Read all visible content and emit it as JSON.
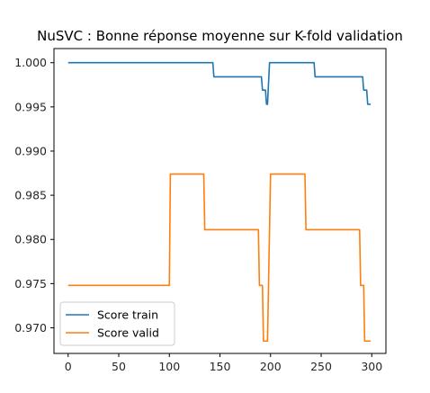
{
  "chart_data": {
    "type": "line",
    "title": "NuSVC : Bonne réponse moyenne sur K-fold validation",
    "xlabel": "",
    "ylabel": "",
    "xlim": [
      -14,
      314
    ],
    "ylim": [
      0.9671,
      1.0016
    ],
    "xticks": [
      0,
      50,
      100,
      150,
      200,
      250,
      300
    ],
    "xtick_labels": [
      "0",
      "50",
      "100",
      "150",
      "200",
      "250",
      "300"
    ],
    "yticks": [
      0.97,
      0.975,
      0.98,
      0.985,
      0.99,
      0.995,
      1.0
    ],
    "ytick_labels": [
      "0.970",
      "0.975",
      "0.980",
      "0.985",
      "0.990",
      "0.995",
      "1.000"
    ],
    "grid": false,
    "legend_position": "lower-left",
    "series": [
      {
        "name": "Score train",
        "color": "#1f77b4",
        "points": [
          [
            0,
            1.0
          ],
          [
            143,
            1.0
          ],
          [
            144,
            0.9984
          ],
          [
            191,
            0.9984
          ],
          [
            192,
            0.9969
          ],
          [
            195,
            0.9969
          ],
          [
            196,
            0.9953
          ],
          [
            197,
            0.9953
          ],
          [
            199,
            1.0
          ],
          [
            243,
            1.0
          ],
          [
            244,
            0.9984
          ],
          [
            291,
            0.9984
          ],
          [
            292,
            0.9969
          ],
          [
            295,
            0.9969
          ],
          [
            296,
            0.9953
          ],
          [
            299,
            0.9953
          ]
        ]
      },
      {
        "name": "Score valid",
        "color": "#ff7f0e",
        "points": [
          [
            0,
            0.9748
          ],
          [
            100,
            0.9748
          ],
          [
            101,
            0.9874
          ],
          [
            134,
            0.9874
          ],
          [
            135,
            0.9811
          ],
          [
            188,
            0.9811
          ],
          [
            189,
            0.9748
          ],
          [
            192,
            0.9748
          ],
          [
            193,
            0.9685
          ],
          [
            197,
            0.9685
          ],
          [
            200,
            0.9874
          ],
          [
            234,
            0.9874
          ],
          [
            235,
            0.9811
          ],
          [
            288,
            0.9811
          ],
          [
            289,
            0.9748
          ],
          [
            292,
            0.9748
          ],
          [
            293,
            0.9685
          ],
          [
            299,
            0.9685
          ]
        ]
      }
    ]
  }
}
